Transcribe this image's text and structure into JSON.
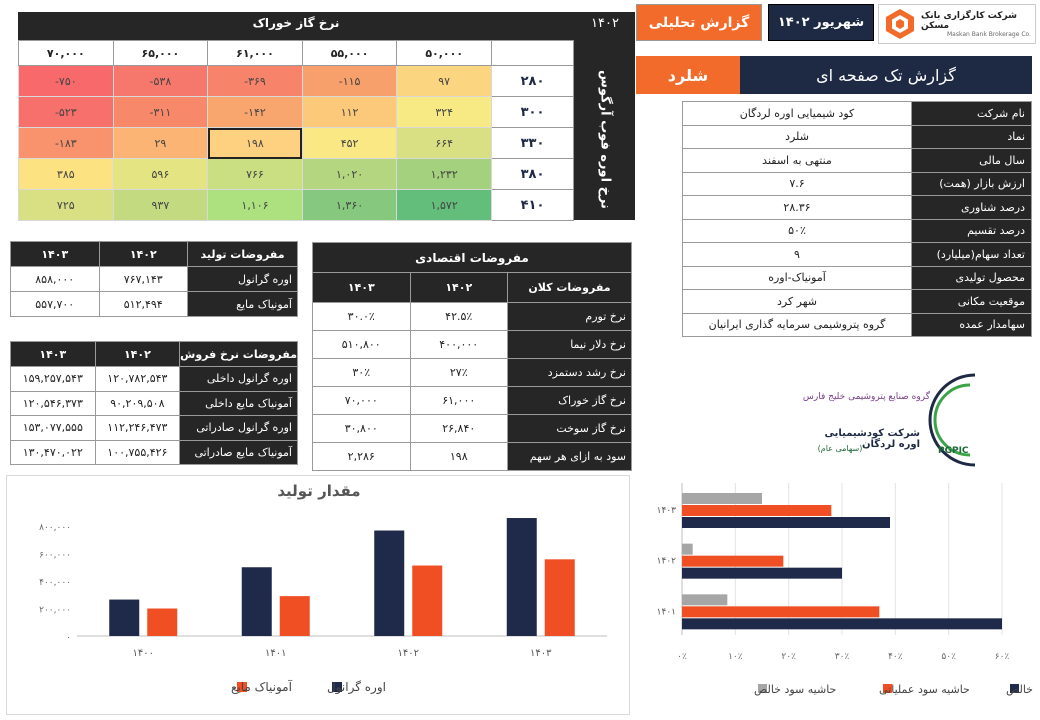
{
  "header": {
    "company": "شرکت کارگزاری بانک مسکن",
    "company_en": "Maskan Bank Brokerage Co.",
    "date": "شهریور ۱۴۰۲",
    "report_type": "گزارش تحلیلی",
    "report_title": "گزارش تک صفحه ای",
    "symbol": "شلرد"
  },
  "info_table": [
    {
      "label": "نام شرکت",
      "value": "کود شیمیایی اوره لردگان"
    },
    {
      "label": "نماد",
      "value": "شلرد"
    },
    {
      "label": "سال مالی",
      "value": "منتهی به اسفند"
    },
    {
      "label": "ارزش بازار (همت)",
      "value": "۷.۶"
    },
    {
      "label": "درصد شناوری",
      "value": "۲۸.۳۶"
    },
    {
      "label": "درصد تقسیم",
      "value": "۵۰٪"
    },
    {
      "label": "تعداد سهام(میلیارد)",
      "value": "۹"
    },
    {
      "label": "محصول تولیدی",
      "value": "آمونیاک-اوره"
    },
    {
      "label": "موقعیت مکانی",
      "value": "شهر کرد"
    },
    {
      "label": "سهامدار عمده",
      "value": "گروه پتروشیمی سرمایه گذاری ایرانیان"
    }
  ],
  "sensitivity": {
    "year": "۱۴۰۲",
    "col_title": "نرخ گاز خوراک",
    "row_title": "نرخ اوره فوب آرگوس",
    "cols": [
      "۵۰,۰۰۰",
      "۵۵,۰۰۰",
      "۶۱,۰۰۰",
      "۶۵,۰۰۰",
      "۷۰,۰۰۰"
    ],
    "rows": [
      {
        "label": "۲۸۰",
        "cells": [
          "۹۷",
          "-۱۱۵",
          "-۳۶۹",
          "-۵۳۸",
          "-۷۵۰"
        ]
      },
      {
        "label": "۳۰۰",
        "cells": [
          "۳۲۴",
          "۱۱۲",
          "-۱۴۲",
          "-۳۱۱",
          "-۵۲۳"
        ]
      },
      {
        "label": "۳۳۰",
        "cells": [
          "۶۶۴",
          "۴۵۲",
          "۱۹۸",
          "۲۹",
          "-۱۸۳"
        ]
      },
      {
        "label": "۳۸۰",
        "cells": [
          "۱,۲۳۲",
          "۱,۰۲۰",
          "۷۶۶",
          "۵۹۶",
          "۳۸۵"
        ]
      },
      {
        "label": "۴۱۰",
        "cells": [
          "۱,۵۷۲",
          "۱,۳۶۰",
          "۱,۱۰۶",
          "۹۳۷",
          "۷۲۵"
        ]
      }
    ],
    "colors": [
      [
        "#fbd57f",
        "#f8a06c",
        "#f6836a",
        "#f6776b",
        "#f8696b"
      ],
      [
        "#f7e984",
        "#fbc979",
        "#f9a66e",
        "#f7886a",
        "#f8706b"
      ],
      [
        "#d9e083",
        "#f9e884",
        "#fdd17f",
        "#fbb473",
        "#f8936d"
      ],
      [
        "#a3d17e",
        "#b5d680",
        "#cade82",
        "#e4e483",
        "#fde282"
      ],
      [
        "#64be7b",
        "#86c87d",
        "#ade07f",
        "#c4da81",
        "#d9e083"
      ]
    ]
  },
  "production": {
    "title": "مفروضات تولید",
    "years": [
      "۱۴۰۲",
      "۱۴۰۳"
    ],
    "rows": [
      {
        "label": "اوره گرانول",
        "v1402": "۷۶۷,۱۴۳",
        "v1403": "۸۵۸,۰۰۰"
      },
      {
        "label": "آمونیاک مایع",
        "v1402": "۵۱۲,۴۹۴",
        "v1403": "۵۵۷,۷۰۰"
      }
    ]
  },
  "sales": {
    "title": "مفروضات نرخ فروش",
    "years": [
      "۱۴۰۲",
      "۱۴۰۳"
    ],
    "rows": [
      {
        "label": "اوره گرانول داخلی",
        "v1402": "۱۲۰,۷۸۲,۵۴۳",
        "v1403": "۱۵۹,۲۵۷,۵۴۳"
      },
      {
        "label": "آمونیاک مایع داخلی",
        "v1402": "۹۰,۲۰۹,۵۰۸",
        "v1403": "۱۲۰,۵۴۶,۳۷۳"
      },
      {
        "label": "اوره گرانول صادراتی",
        "v1402": "۱۱۲,۲۴۶,۴۷۳",
        "v1403": "۱۵۳,۰۷۷,۵۵۵"
      },
      {
        "label": "آمونیاک مایع صادراتی",
        "v1402": "۱۰۰,۷۵۵,۴۲۶",
        "v1403": "۱۳۰,۴۷۰,۰۲۲"
      }
    ]
  },
  "economic": {
    "title": "مفروضات اقتصادی",
    "col_label": "مفروضات کلان",
    "years": [
      "۱۴۰۲",
      "۱۴۰۳"
    ],
    "rows": [
      {
        "label": "نرخ تورم",
        "v1402": "۴۲.۵٪",
        "v1403": "۳۰.۰٪"
      },
      {
        "label": "نرخ دلار نیما",
        "v1402": "۴۰۰,۰۰۰",
        "v1403": "۵۱۰,۸۰۰"
      },
      {
        "label": "نرخ رشد دستمزد",
        "v1402": "۲۷٪",
        "v1403": "۳۰٪"
      },
      {
        "label": "نرخ گاز خوراک",
        "v1402": "۶۱,۰۰۰",
        "v1403": "۷۰,۰۰۰"
      },
      {
        "label": "نرخ گاز سوخت",
        "v1402": "۲۶,۸۴۰",
        "v1403": "۳۰,۸۰۰"
      },
      {
        "label": "سود به ازای هر سهم",
        "v1402": "۱۹۸",
        "v1403": "۲,۲۸۶"
      }
    ]
  },
  "logo": {
    "line1": "گروه صنایع پتروشیمی خلیج فارس",
    "line2": "شرکت کودشیمیایی اوره لردگان",
    "line3": "(سهامی عام)",
    "brand": "PGPIC"
  },
  "chart_data": [
    {
      "type": "bar",
      "title": "مقدار تولید",
      "categories": [
        "۱۴۰۰",
        "۱۴۰۱",
        "۱۴۰۲",
        "۱۴۰۳"
      ],
      "series": [
        {
          "name": "اوره گرانول",
          "color": "#1f2a4a",
          "values": [
            265000,
            500000,
            767143,
            858000
          ]
        },
        {
          "name": "آمونیاک مایع",
          "color": "#f04e23",
          "values": [
            200000,
            290000,
            512494,
            557700
          ]
        }
      ],
      "yticks": [
        "۰",
        "۲۰۰,۰۰۰",
        "۴۰۰,۰۰۰",
        "۶۰۰,۰۰۰",
        "۸۰۰,۰۰۰"
      ],
      "ylim": [
        0,
        800000
      ],
      "legend": "bottom"
    },
    {
      "type": "bar",
      "orientation": "horizontal",
      "categories": [
        "۱۴۰۱",
        "۱۴۰۲",
        "۱۴۰۳"
      ],
      "series": [
        {
          "name": "حاشیه سود ناخالص",
          "color": "#1f2a4a",
          "values": [
            0.6,
            0.3,
            0.39
          ]
        },
        {
          "name": "حاشیه سود عملیاتی",
          "color": "#f04e23",
          "values": [
            0.37,
            0.19,
            0.28
          ]
        },
        {
          "name": "حاشیه سود خالص",
          "color": "#a6a6a6",
          "values": [
            0.085,
            0.02,
            0.15
          ]
        }
      ],
      "xticks": [
        "۰٪",
        "۱۰٪",
        "۲۰٪",
        "۳۰٪",
        "۴۰٪",
        "۵۰٪",
        "۶۰٪"
      ],
      "xlim": [
        0,
        0.6
      ],
      "legend": "bottom"
    }
  ]
}
